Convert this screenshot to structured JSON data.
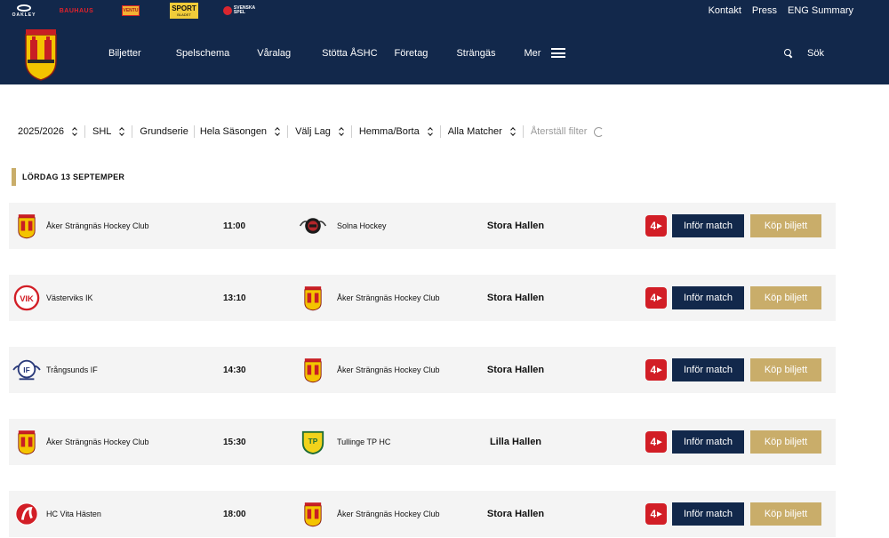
{
  "sponsors": {
    "oakley": "OAKLEY",
    "bauhaus": "BAUHAUS",
    "tele": "VENTU",
    "sport_line1": "SPORT",
    "sport_line2": "BLADET",
    "spel_line1": "SVENSKA",
    "spel_line2": "SPEL"
  },
  "toplinks": [
    "Kontakt",
    "Press",
    "ENG Summary"
  ],
  "nav": {
    "items": [
      "Biljetter",
      "Spelschema",
      "Våralag",
      "Stötta ÅSHC",
      "Företag",
      "Strängäs",
      "Mer"
    ],
    "search_label": "Sök"
  },
  "filters": {
    "season": "2025/2026",
    "league": "SHL",
    "series": "Grundserie",
    "period": "Hela Säsongen",
    "team": "Välj Lag",
    "homeaway": "Hemma/Borta",
    "matches": "Alla Matcher",
    "reset": "Återställ filter"
  },
  "date_heading": "LÖRDAG 13 SEPTEMPER",
  "buttons": {
    "info": "Inför match",
    "buy": "Köp biljett",
    "tv": "4"
  },
  "matches": [
    {
      "home": "Åker Strängnäs Hockey Club",
      "home_logo": "ashc",
      "time": "11:00",
      "away": "Solna Hockey",
      "away_logo": "solna",
      "venue": "Stora Hallen"
    },
    {
      "home": "Västerviks IK",
      "home_logo": "vik",
      "time": "13:10",
      "away": "Åker Strängnäs Hockey Club",
      "away_logo": "ashc",
      "venue": "Stora Hallen"
    },
    {
      "home": "Trångsunds IF",
      "home_logo": "trangsund",
      "time": "14:30",
      "away": "Åker Strängnäs Hockey Club",
      "away_logo": "ashc",
      "venue": "Stora Hallen"
    },
    {
      "home": "Åker Strängnäs Hockey Club",
      "home_logo": "ashc",
      "time": "15:30",
      "away": "Tullinge TP HC",
      "away_logo": "tullinge",
      "venue": "Lilla Hallen"
    },
    {
      "home": "HC Vita Hästen",
      "home_logo": "vitahasten",
      "time": "18:00",
      "away": "Åker Strängnäs Hockey Club",
      "away_logo": "ashc",
      "venue": "Stora Hallen"
    }
  ],
  "colors": {
    "navy": "#12284b",
    "gold": "#c9ad6a",
    "tv4_red": "#d21e26",
    "row_bg": "#f4f4f4"
  }
}
